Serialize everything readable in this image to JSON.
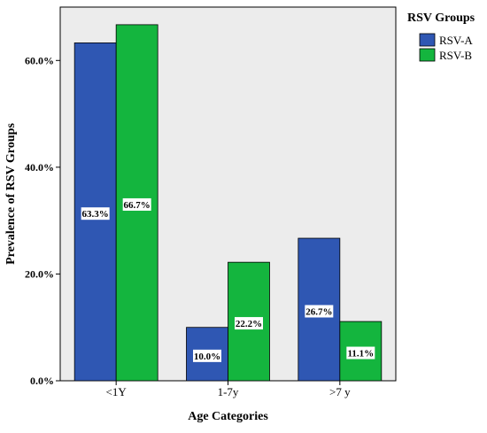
{
  "colors": {
    "plot_background": "#ececec",
    "axis": "#000000"
  },
  "chart_data": {
    "type": "bar",
    "title": "",
    "xlabel": "Age Categories",
    "ylabel": "Prevalence of RSV Groups",
    "categories": [
      "<1Y",
      "1-7y",
      ">7 y"
    ],
    "ylim": [
      0,
      0.7
    ],
    "yticks": [
      0,
      0.2,
      0.4,
      0.6
    ],
    "ytick_labels": [
      "0.0%",
      "20.0%",
      "40.0%",
      "60.0%"
    ],
    "grid": false,
    "legend": {
      "title": "RSV Groups",
      "placement": "right"
    },
    "series": [
      {
        "name": "RSV-A",
        "color": "#2f57b3",
        "values": [
          0.633,
          0.1,
          0.267
        ],
        "labels": [
          "63.3%",
          "10.0%",
          "26.7%"
        ]
      },
      {
        "name": "RSV-B",
        "color": "#14b53e",
        "values": [
          0.667,
          0.222,
          0.111
        ],
        "labels": [
          "66.7%",
          "22.2%",
          "11.1%"
        ]
      }
    ]
  }
}
